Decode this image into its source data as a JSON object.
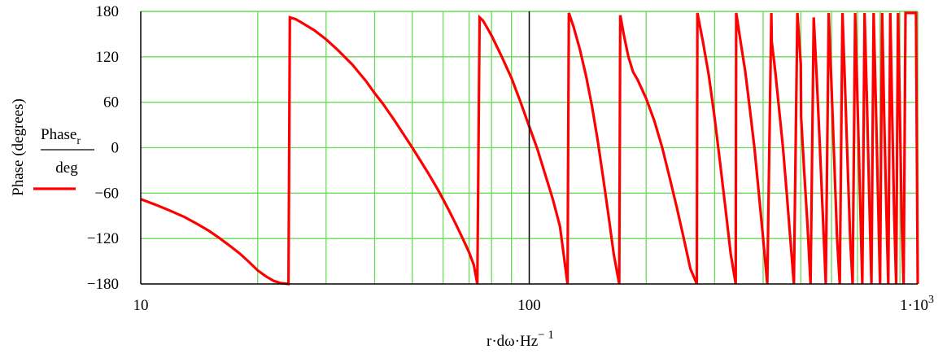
{
  "chart_data": {
    "type": "line",
    "x_scale": "log",
    "xlim": [
      10,
      1000
    ],
    "ylim": [
      -180,
      180
    ],
    "grid": true,
    "colors": {
      "series": "#ff0000",
      "grid": "#66dd55",
      "axes": "#000000"
    },
    "x_ticks": [
      {
        "value": 10,
        "label": "10"
      },
      {
        "value": 100,
        "label": "100"
      },
      {
        "value": 1000,
        "label": "1·10",
        "sup": "3"
      }
    ],
    "y_ticks": [
      {
        "value": 180,
        "label": "180"
      },
      {
        "value": 120,
        "label": "120"
      },
      {
        "value": 60,
        "label": "60"
      },
      {
        "value": 0,
        "label": "0"
      },
      {
        "value": -60,
        "label": "−60"
      },
      {
        "value": -120,
        "label": "−120"
      },
      {
        "value": -180,
        "label": "−180"
      }
    ],
    "xlabel": {
      "text": "r·dω·Hz",
      "sup": "− 1"
    },
    "ylabel": "Phase (degrees)",
    "legend": {
      "numerator": "Phase",
      "numerator_sub": "r",
      "denominator": "deg",
      "placement": "left"
    },
    "series": [
      {
        "x": [
          10,
          11,
          12,
          13,
          14,
          15,
          16,
          17,
          18,
          19,
          20,
          21,
          22,
          23,
          24,
          24.2,
          25,
          26,
          28,
          30,
          32,
          35,
          38,
          40,
          42,
          45,
          48,
          50,
          52,
          55,
          58,
          60,
          62,
          65,
          68,
          70,
          72,
          73.5,
          74.5,
          76,
          78,
          80,
          85,
          90,
          95,
          100,
          105,
          110,
          115,
          120,
          125.5,
          126.5,
          130,
          135,
          140,
          145,
          150,
          155,
          160,
          165,
          170.5,
          171.5,
          175,
          180,
          185,
          190,
          200,
          210,
          220,
          230,
          240,
          250,
          260,
          270,
          271,
          280,
          290,
          300,
          310,
          320,
          330,
          340,
          341,
          350,
          360,
          370,
          380,
          390,
          400,
          410,
          420,
          421,
          430,
          440,
          450,
          460,
          470,
          480,
          490,
          500,
          501,
          510,
          520,
          530,
          540,
          550,
          560,
          570,
          580,
          590,
          600,
          610,
          620,
          630,
          640,
          650,
          660,
          670,
          680,
          690,
          700,
          710,
          720,
          730,
          740,
          750,
          760,
          770,
          780,
          790,
          800,
          810,
          820,
          830,
          840,
          850,
          860,
          870,
          880,
          890,
          900,
          910,
          920,
          930,
          940,
          950,
          960,
          970,
          980,
          990,
          1000
        ],
        "y": [
          -68,
          -76,
          -84,
          -92,
          -101,
          -110,
          -120,
          -130,
          -140,
          -151,
          -162,
          -170,
          -176,
          -179,
          -180,
          172,
          170,
          165,
          155,
          143,
          130,
          110,
          88,
          72,
          58,
          36,
          14,
          0,
          -14,
          -34,
          -54,
          -68,
          -82,
          -103,
          -124,
          -138,
          -155,
          -180,
          172,
          168,
          158,
          148,
          120,
          92,
          60,
          28,
          -2,
          -36,
          -68,
          -104,
          -180,
          178,
          160,
          130,
          95,
          55,
          10,
          -40,
          -90,
          -140,
          -180,
          175,
          150,
          120,
          100,
          90,
          65,
          35,
          0,
          -40,
          -80,
          -120,
          -160,
          -180,
          178,
          140,
          95,
          40,
          -20,
          -80,
          -140,
          -180,
          178,
          140,
          100,
          50,
          0,
          -60,
          -120,
          -180,
          178,
          140,
          100,
          50,
          0,
          -60,
          -120,
          -180,
          178,
          110,
          40,
          -30,
          -100,
          -180,
          172,
          90,
          0,
          -90,
          -180,
          178,
          80,
          -20,
          -120,
          -180,
          178,
          80,
          -20,
          -120,
          -180,
          178,
          60,
          -60,
          -180,
          178,
          60,
          -60,
          -180,
          178,
          60,
          -60,
          -180,
          178,
          40,
          -80,
          -180,
          178,
          40,
          -90,
          -180,
          178,
          40,
          -100,
          -180,
          178,
          178,
          178,
          178,
          178,
          178,
          178,
          -180
        ]
      }
    ]
  }
}
